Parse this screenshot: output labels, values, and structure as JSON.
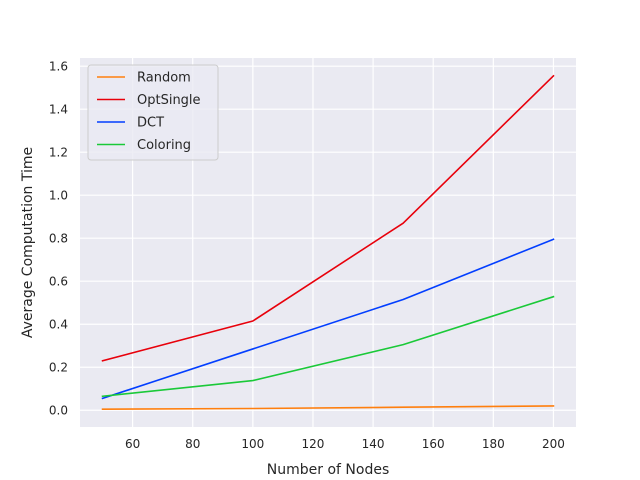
{
  "chart_data": {
    "type": "line",
    "title": "",
    "xlabel": "Number of Nodes",
    "ylabel": "Average Computation Time",
    "x": [
      50,
      100,
      150,
      200
    ],
    "xlim": [
      42.5,
      207.5
    ],
    "ylim": [
      -0.078,
      1.638
    ],
    "xticks": [
      60,
      80,
      100,
      120,
      140,
      160,
      180,
      200
    ],
    "yticks": [
      0.0,
      0.2,
      0.4,
      0.6,
      0.8,
      1.0,
      1.2,
      1.4,
      1.6
    ],
    "xtick_labels": [
      "60",
      "80",
      "100",
      "120",
      "140",
      "160",
      "180",
      "200"
    ],
    "ytick_labels": [
      "0.0",
      "0.2",
      "0.4",
      "0.6",
      "0.8",
      "1.0",
      "1.2",
      "1.4",
      "1.6"
    ],
    "grid": true,
    "legend_position": "top-left",
    "series": [
      {
        "name": "Random",
        "color": "#ff7f0e",
        "values": [
          0.005,
          0.008,
          0.014,
          0.02
        ]
      },
      {
        "name": "OptSingle",
        "color": "#e8000b",
        "values": [
          0.23,
          0.415,
          0.87,
          1.555
        ]
      },
      {
        "name": "DCT",
        "color": "#023eff",
        "values": [
          0.055,
          0.285,
          0.515,
          0.795
        ]
      },
      {
        "name": "Coloring",
        "color": "#1ac938",
        "values": [
          0.065,
          0.138,
          0.305,
          0.528
        ]
      }
    ]
  }
}
